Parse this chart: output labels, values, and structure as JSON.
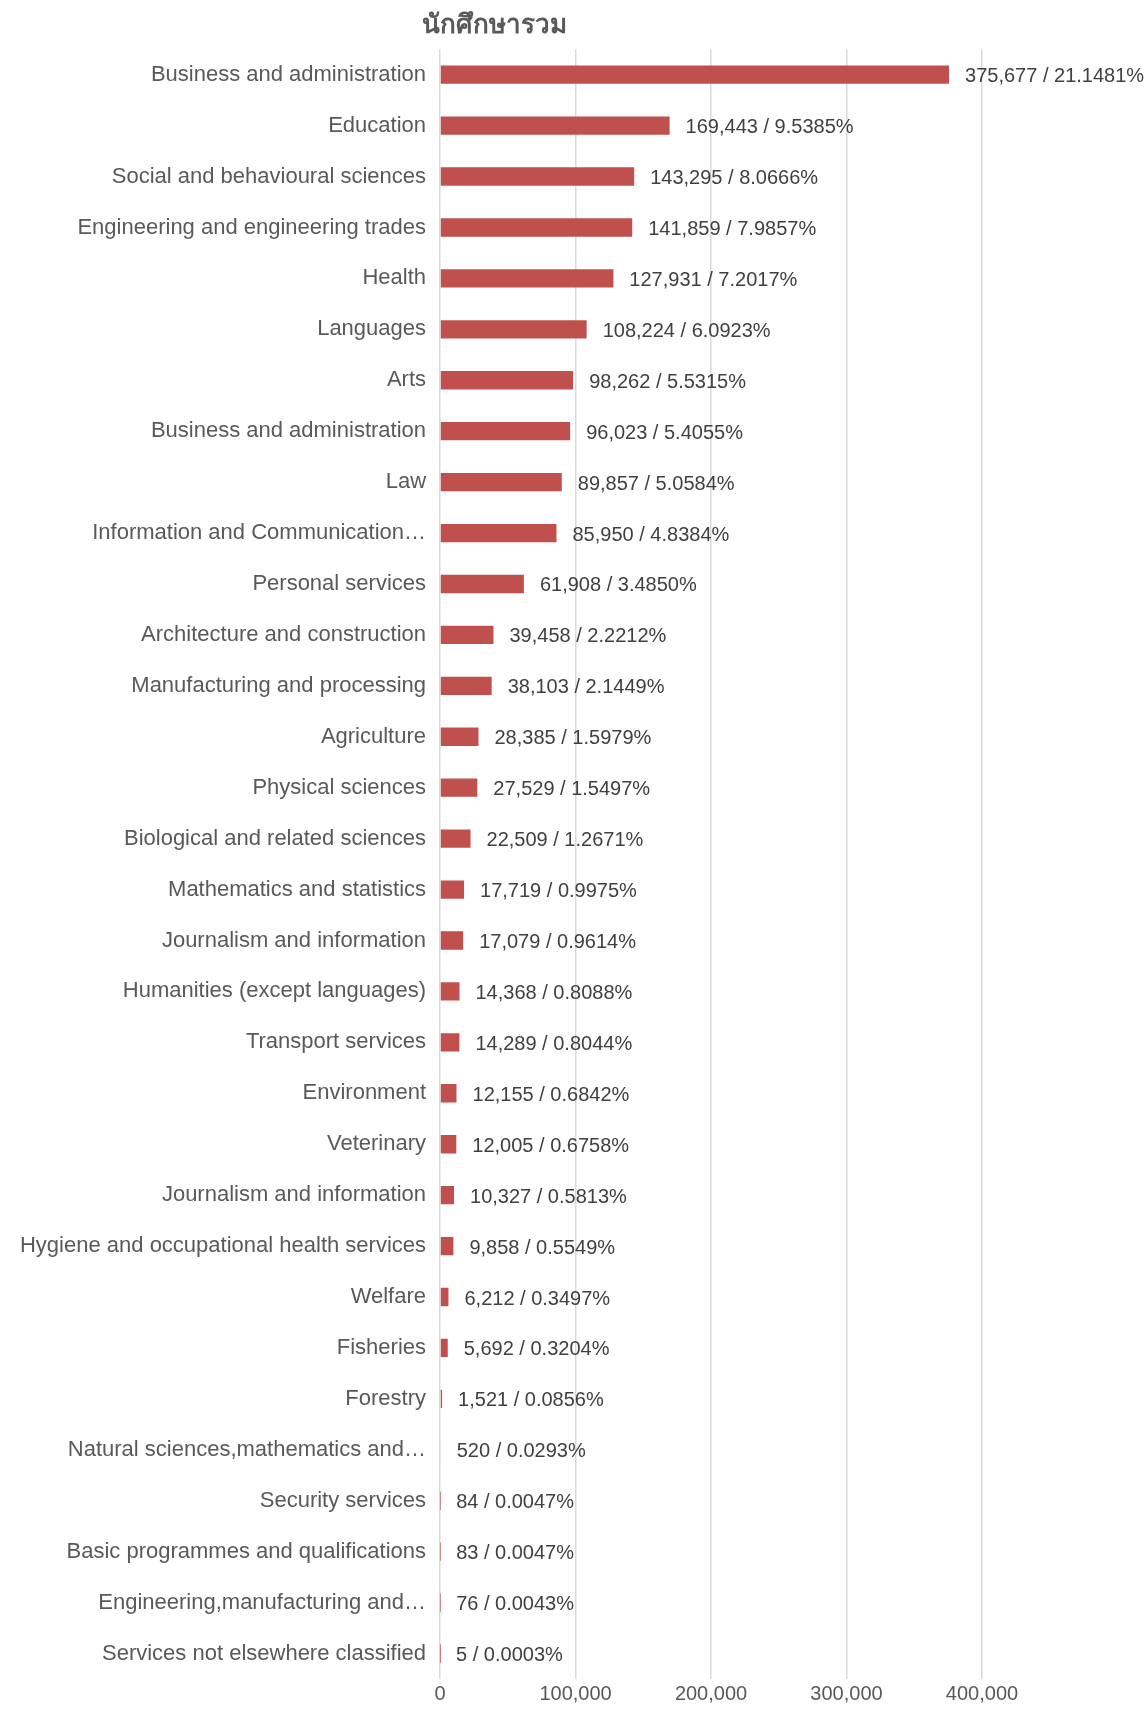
{
  "chart_data": {
    "type": "bar",
    "orientation": "horizontal",
    "title": "นักศึกษารวม",
    "categories": [
      "Business and administration",
      "Education",
      "Social and behavioural sciences",
      "Engineering and engineering trades",
      "Health",
      "Languages",
      "Arts",
      "Business and administration",
      "Law",
      "Information and Communication…",
      "Personal services",
      "Architecture and construction",
      "Manufacturing and processing",
      "Agriculture",
      "Physical sciences",
      "Biological and related sciences",
      "Mathematics and statistics",
      "Journalism and information",
      "Humanities (except languages)",
      "Transport services",
      "Environment",
      "Veterinary",
      "Journalism and information",
      "Hygiene and occupational health services",
      "Welfare",
      "Fisheries",
      "Forestry",
      "Natural sciences,mathematics and…",
      "Security services",
      "Basic programmes and qualifications",
      "Engineering,manufacturing and…",
      "Services not elsewhere classified"
    ],
    "values": [
      375677,
      169443,
      143295,
      141859,
      127931,
      108224,
      98262,
      96023,
      89857,
      85950,
      61908,
      39458,
      38103,
      28385,
      27529,
      22509,
      17719,
      17079,
      14368,
      14289,
      12155,
      12005,
      10327,
      9858,
      6212,
      5692,
      1521,
      520,
      84,
      83,
      76,
      5
    ],
    "value_labels": [
      "375,677 / 21.1481%",
      "169,443 / 9.5385%",
      "143,295 / 8.0666%",
      "141,859 / 7.9857%",
      "127,931 / 7.2017%",
      "108,224 / 6.0923%",
      "98,262 / 5.5315%",
      "96,023 / 5.4055%",
      "89,857 / 5.0584%",
      "85,950 / 4.8384%",
      "61,908 / 3.4850%",
      "39,458 / 2.2212%",
      "38,103 / 2.1449%",
      "28,385 / 1.5979%",
      "27,529 / 1.5497%",
      "22,509 / 1.2671%",
      "17,719 / 0.9975%",
      "17,079 / 0.9614%",
      "14,368 / 0.8088%",
      "14,289 / 0.8044%",
      "12,155 / 0.6842%",
      "12,005 / 0.6758%",
      "10,327 / 0.5813%",
      "9,858 / 0.5549%",
      "6,212 / 0.3497%",
      "5,692 / 0.3204%",
      "1,521 / 0.0856%",
      "520 / 0.0293%",
      "84 / 0.0047%",
      "83 / 0.0047%",
      "76 / 0.0043%",
      "5 / 0.0003%"
    ],
    "color": "#c0504d",
    "xlim": [
      0,
      400000
    ],
    "xticks": [
      {
        "value": 0,
        "label": "0"
      },
      {
        "value": 100000,
        "label": "100,000"
      },
      {
        "value": 200000,
        "label": "200,000"
      },
      {
        "value": 300000,
        "label": "300,000"
      },
      {
        "value": 400000,
        "label": "400,000"
      }
    ],
    "grid": "x",
    "legend": false
  }
}
